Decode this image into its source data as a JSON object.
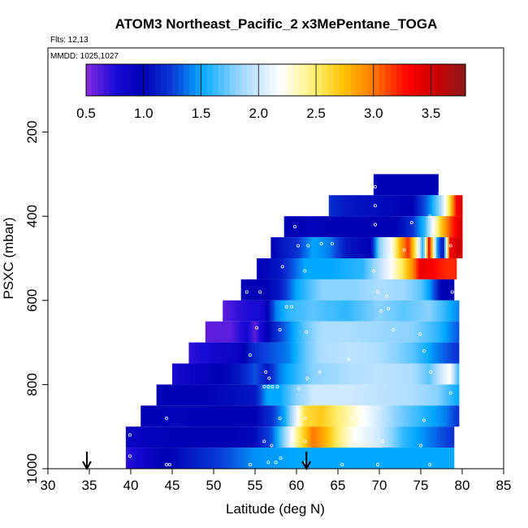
{
  "chart_data": {
    "type": "heatmap",
    "title": "ATOM3 Northeast_Pacific_2 x3MePentane_TOGA",
    "flights_note": "Flts: 12,13",
    "dates_note": "MMDD: 1025,1027",
    "xlabel": "Latitude (deg N)",
    "ylabel": "PSXC (mbar)",
    "xlim": [
      30,
      85
    ],
    "ylim": [
      1000,
      0
    ],
    "x_ticks": [
      "30",
      "35",
      "40",
      "45",
      "50",
      "55",
      "60",
      "65",
      "70",
      "75",
      "80",
      "85"
    ],
    "y_ticks": [
      "200",
      "400",
      "600",
      "800",
      "1000"
    ],
    "colorbar": {
      "range": [
        0.5,
        3.8
      ],
      "ticks": [
        "0.5",
        "1.0",
        "1.5",
        "2.0",
        "2.5",
        "3.0",
        "3.5"
      ],
      "stops": [
        {
          "v": 0.5,
          "c": "#8a2be2"
        },
        {
          "v": 0.75,
          "c": "#1a0bd6"
        },
        {
          "v": 1.0,
          "c": "#0000b4"
        },
        {
          "v": 1.25,
          "c": "#0a3cd8"
        },
        {
          "v": 1.5,
          "c": "#00a8ff"
        },
        {
          "v": 1.8,
          "c": "#8ad2ff"
        },
        {
          "v": 2.0,
          "c": "#cfe9ff"
        },
        {
          "v": 2.2,
          "c": "#ffffff"
        },
        {
          "v": 2.5,
          "c": "#ffef6e"
        },
        {
          "v": 2.75,
          "c": "#ffc000"
        },
        {
          "v": 3.0,
          "c": "#ff7800"
        },
        {
          "v": 3.3,
          "c": "#ff0000"
        },
        {
          "v": 3.55,
          "c": "#c80000"
        },
        {
          "v": 3.8,
          "c": "#8b1a1a"
        }
      ]
    },
    "arrows_latitude": [
      34.7,
      61.2
    ],
    "rows": [
      {
        "p": 325,
        "xmin": 69.3,
        "xmax": 77.1,
        "profile": [
          [
            69.3,
            1.0
          ],
          [
            77.1,
            1.0
          ]
        ],
        "points": [
          [
            69.5,
            330
          ],
          [
            77.3,
            345
          ]
        ]
      },
      {
        "p": 375,
        "xmin": 63.9,
        "xmax": 80.0,
        "profile": [
          [
            63.9,
            1.2
          ],
          [
            66,
            1.1
          ],
          [
            70,
            1.05
          ],
          [
            74,
            1.0
          ],
          [
            76,
            1.4
          ],
          [
            77.5,
            1.9
          ],
          [
            78.5,
            2.6
          ],
          [
            79.3,
            3.3
          ],
          [
            80.0,
            3.5
          ]
        ],
        "points": [
          [
            69.5,
            375
          ]
        ]
      },
      {
        "p": 425,
        "xmin": 58.5,
        "xmax": 80.0,
        "profile": [
          [
            58.5,
            1.0
          ],
          [
            62,
            0.95
          ],
          [
            67,
            1.0
          ],
          [
            72,
            1.0
          ],
          [
            74,
            1.2
          ],
          [
            75.5,
            1.6
          ],
          [
            76.5,
            2.2
          ],
          [
            77.5,
            2.7
          ],
          [
            78.5,
            3.1
          ],
          [
            79.5,
            3.4
          ],
          [
            80,
            3.5
          ]
        ],
        "points": [
          [
            59.8,
            425
          ],
          [
            69.5,
            420
          ],
          [
            73.9,
            415
          ],
          [
            76.1,
            400
          ],
          [
            76.6,
            410
          ]
        ]
      },
      {
        "p": 475,
        "xmin": 56.9,
        "xmax": 80.0,
        "profile": [
          [
            56.9,
            1.0
          ],
          [
            60,
            1.2
          ],
          [
            62,
            1.5
          ],
          [
            64,
            1.4
          ],
          [
            66,
            1.1
          ],
          [
            69,
            1.0
          ],
          [
            70,
            1.8
          ],
          [
            71.5,
            2.2
          ],
          [
            72.5,
            2.8
          ],
          [
            73.5,
            3.2
          ],
          [
            74.5,
            2.4
          ],
          [
            75.3,
            1.5
          ],
          [
            76,
            3.4
          ],
          [
            77,
            1.5
          ],
          [
            77.7,
            1.0
          ],
          [
            78.5,
            3.3
          ],
          [
            79.4,
            3.5
          ]
        ],
        "points": [
          [
            60.2,
            470
          ],
          [
            61.4,
            470
          ],
          [
            63.0,
            465
          ],
          [
            64.3,
            465
          ],
          [
            73.0,
            480
          ],
          [
            78.6,
            470
          ]
        ]
      },
      {
        "p": 525,
        "xmin": 55.2,
        "xmax": 79.3,
        "profile": [
          [
            55.2,
            1.0
          ],
          [
            58,
            1.1
          ],
          [
            61,
            1.5
          ],
          [
            64,
            1.5
          ],
          [
            68,
            1.6
          ],
          [
            71,
            2.1
          ],
          [
            73,
            2.6
          ],
          [
            74.2,
            3.0
          ],
          [
            75,
            3.4
          ],
          [
            76.5,
            3.3
          ],
          [
            78,
            3.2
          ],
          [
            79.3,
            3.2
          ]
        ],
        "points": [
          [
            58.3,
            520
          ],
          [
            61.0,
            530
          ],
          [
            69.3,
            530
          ],
          [
            71.8,
            520
          ]
        ]
      },
      {
        "p": 575,
        "xmin": 53.3,
        "xmax": 79.0,
        "profile": [
          [
            53.3,
            1.0
          ],
          [
            56,
            1.0
          ],
          [
            58,
            1.1
          ],
          [
            60,
            1.5
          ],
          [
            63,
            1.8
          ],
          [
            67,
            1.8
          ],
          [
            70,
            1.9
          ],
          [
            73,
            1.85
          ],
          [
            75,
            1.7
          ],
          [
            76,
            1.5
          ],
          [
            77.5,
            1.0
          ],
          [
            79,
            1.0
          ]
        ],
        "points": [
          [
            54.0,
            580
          ],
          [
            55.6,
            580
          ],
          [
            69.8,
            580
          ],
          [
            70.9,
            590
          ],
          [
            78.8,
            580
          ]
        ]
      },
      {
        "p": 625,
        "xmin": 51.1,
        "xmax": 79.6,
        "profile": [
          [
            51.1,
            0.6
          ],
          [
            53,
            0.7
          ],
          [
            56,
            0.8
          ],
          [
            57.5,
            1.4
          ],
          [
            59,
            1.6
          ],
          [
            62,
            1.7
          ],
          [
            66,
            1.6
          ],
          [
            70,
            1.8
          ],
          [
            73,
            1.7
          ],
          [
            76,
            1.8
          ],
          [
            78,
            1.6
          ],
          [
            79.6,
            1.4
          ]
        ],
        "points": [
          [
            58.8,
            615
          ],
          [
            59.4,
            615
          ],
          [
            70.2,
            625
          ],
          [
            71.1,
            620
          ]
        ]
      },
      {
        "p": 675,
        "xmin": 49.0,
        "xmax": 79.6,
        "profile": [
          [
            49.0,
            0.6
          ],
          [
            52,
            0.6
          ],
          [
            54,
            0.8
          ],
          [
            55,
            0.6
          ],
          [
            57,
            1.1
          ],
          [
            59,
            1.4
          ],
          [
            61,
            1.7
          ],
          [
            63,
            1.9
          ],
          [
            66,
            1.9
          ],
          [
            70,
            1.85
          ],
          [
            74,
            1.8
          ],
          [
            77,
            1.6
          ],
          [
            79.6,
            1.3
          ]
        ],
        "points": [
          [
            55.2,
            665
          ],
          [
            58.0,
            670
          ],
          [
            61.2,
            675
          ],
          [
            71.7,
            670
          ],
          [
            74.9,
            680
          ]
        ]
      },
      {
        "p": 725,
        "xmin": 47.0,
        "xmax": 79.6,
        "profile": [
          [
            47.0,
            0.7
          ],
          [
            50,
            0.8
          ],
          [
            53,
            0.9
          ],
          [
            55,
            1.2
          ],
          [
            57,
            1.3
          ],
          [
            59,
            1.4
          ],
          [
            61,
            1.7
          ],
          [
            63,
            1.9
          ],
          [
            67,
            1.95
          ],
          [
            70,
            1.9
          ],
          [
            74,
            1.7
          ],
          [
            77,
            1.4
          ],
          [
            79.6,
            1.2
          ]
        ],
        "points": [
          [
            54.4,
            730
          ],
          [
            66.3,
            740
          ],
          [
            75.4,
            720
          ]
        ]
      },
      {
        "p": 775,
        "xmin": 45.0,
        "xmax": 79.6,
        "profile": [
          [
            45.0,
            0.8
          ],
          [
            48,
            0.9
          ],
          [
            51,
            1.0
          ],
          [
            53,
            1.1
          ],
          [
            55,
            1.3
          ],
          [
            56.5,
            1.1
          ],
          [
            58,
            1.4
          ],
          [
            60,
            1.6
          ],
          [
            62,
            1.8
          ],
          [
            66,
            1.9
          ],
          [
            70,
            1.95
          ],
          [
            74,
            1.9
          ],
          [
            76,
            1.7
          ],
          [
            77.5,
            2.0
          ],
          [
            78.5,
            2.2
          ],
          [
            79.6,
            1.6
          ]
        ],
        "points": [
          [
            56.3,
            770
          ],
          [
            56.7,
            785
          ],
          [
            61.3,
            785
          ],
          [
            62.8,
            770
          ],
          [
            76.2,
            770
          ]
        ]
      },
      {
        "p": 825,
        "xmin": 43.1,
        "xmax": 79.6,
        "profile": [
          [
            43.1,
            1.0
          ],
          [
            48,
            1.0
          ],
          [
            52,
            1.05
          ],
          [
            55,
            1.1
          ],
          [
            56.5,
            1.5
          ],
          [
            58,
            1.5
          ],
          [
            60,
            1.8
          ],
          [
            62,
            2.0
          ],
          [
            66,
            2.0
          ],
          [
            70,
            1.95
          ],
          [
            74,
            1.9
          ],
          [
            77,
            1.8
          ],
          [
            79.6,
            1.5
          ]
        ],
        "points": [
          [
            56.1,
            805
          ],
          [
            56.6,
            805
          ],
          [
            57.1,
            805
          ],
          [
            57.7,
            805
          ],
          [
            60.3,
            810
          ],
          [
            78.6,
            820
          ]
        ]
      },
      {
        "p": 875,
        "xmin": 41.2,
        "xmax": 79.6,
        "profile": [
          [
            41.2,
            1.0
          ],
          [
            45,
            0.95
          ],
          [
            50,
            1.0
          ],
          [
            55,
            1.0
          ],
          [
            57,
            1.2
          ],
          [
            58.5,
            1.5
          ],
          [
            60,
            2.1
          ],
          [
            61,
            2.6
          ],
          [
            63,
            2.7
          ],
          [
            65,
            2.5
          ],
          [
            67,
            2.3
          ],
          [
            70,
            2.0
          ],
          [
            72,
            1.8
          ],
          [
            75,
            1.6
          ],
          [
            78,
            1.4
          ],
          [
            79.6,
            1.2
          ]
        ],
        "points": [
          [
            44.3,
            880
          ],
          [
            58.0,
            880
          ],
          [
            61.0,
            880
          ],
          [
            66.7,
            880
          ],
          [
            75.4,
            885
          ]
        ]
      },
      {
        "p": 925,
        "xmin": 39.4,
        "xmax": 79.0,
        "profile": [
          [
            39.4,
            0.9
          ],
          [
            43,
            0.95
          ],
          [
            47,
            1.0
          ],
          [
            52,
            1.0
          ],
          [
            55,
            1.05
          ],
          [
            57,
            1.3
          ],
          [
            58.5,
            1.8
          ],
          [
            60,
            2.4
          ],
          [
            61,
            2.7
          ],
          [
            62,
            3.0
          ],
          [
            63.5,
            2.8
          ],
          [
            65,
            2.5
          ],
          [
            67,
            2.2
          ],
          [
            70,
            2.0
          ],
          [
            73,
            1.6
          ],
          [
            76,
            1.4
          ],
          [
            79,
            1.2
          ]
        ],
        "points": [
          [
            39.9,
            920
          ],
          [
            56.1,
            935
          ],
          [
            57.0,
            945
          ],
          [
            61.0,
            935
          ],
          [
            70.4,
            935
          ],
          [
            75.0,
            945
          ]
        ]
      },
      {
        "p": 975,
        "xmin": 39.4,
        "xmax": 79.0,
        "profile": [
          [
            39.4,
            0.7
          ],
          [
            41,
            0.8
          ],
          [
            43,
            0.95
          ],
          [
            47,
            1.1
          ],
          [
            52,
            1.3
          ],
          [
            55,
            1.45
          ],
          [
            60,
            1.5
          ],
          [
            66,
            1.5
          ],
          [
            72,
            1.5
          ],
          [
            79,
            1.5
          ]
        ],
        "points": [
          [
            39.9,
            970
          ],
          [
            44.3,
            990
          ],
          [
            44.7,
            990
          ],
          [
            54.4,
            990
          ],
          [
            56.6,
            985
          ],
          [
            57.5,
            985
          ],
          [
            58.1,
            975
          ],
          [
            61.1,
            985
          ],
          [
            65.5,
            990
          ],
          [
            69.8,
            990
          ],
          [
            76.1,
            990
          ]
        ]
      }
    ]
  }
}
